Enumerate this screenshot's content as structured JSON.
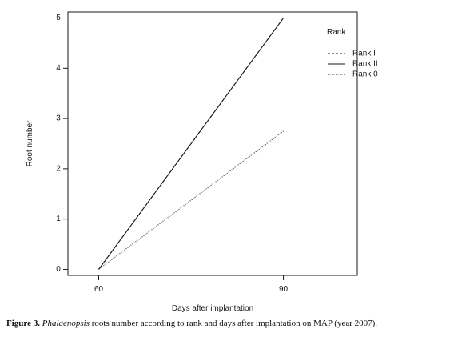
{
  "chart_data": {
    "type": "line",
    "x": [
      60,
      90
    ],
    "xlabel": "Days after implantation",
    "ylabel": "Root number",
    "xticks": [
      60,
      90
    ],
    "yticks": [
      0,
      1,
      2,
      3,
      4,
      5
    ],
    "xlim": [
      55,
      102
    ],
    "ylim": [
      -0.12,
      5.12
    ],
    "grid": false,
    "legend": {
      "title": "Rank",
      "placement": "top-right"
    },
    "series": [
      {
        "name": "Rank I",
        "values": [
          0,
          5
        ],
        "style": "dashed"
      },
      {
        "name": "Rank II",
        "values": [
          0,
          5
        ],
        "style": "solid"
      },
      {
        "name": "Rank 0",
        "values": [
          0,
          2.75
        ],
        "style": "dotted"
      }
    ]
  },
  "caption": {
    "label": "Figure 3.",
    "genus": "Phalaenopsis",
    "rest": " roots number according to rank and days after implantation on MAP (year 2007)."
  },
  "colors": {
    "line": "#1a1a1a",
    "frame": "#1a1a1a"
  }
}
